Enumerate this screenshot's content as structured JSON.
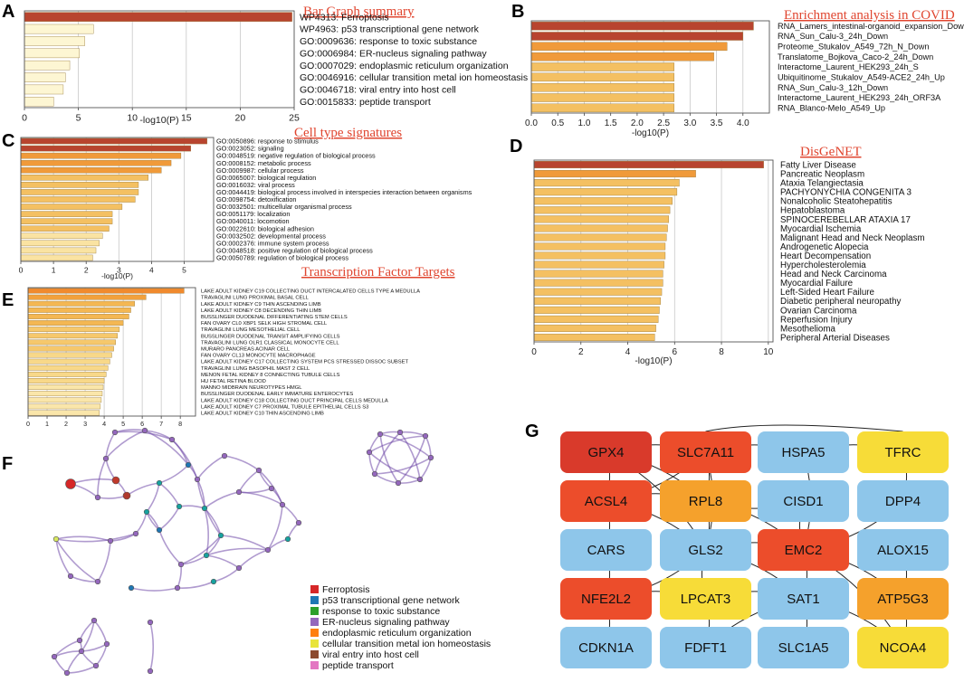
{
  "panel_labels": {
    "A": "A",
    "B": "B",
    "C": "C",
    "D": "D",
    "E": "E",
    "F": "F",
    "G": "G"
  },
  "colors": {
    "bar_dark": "#b8442f",
    "bar_orange": "#f09a3a",
    "bar_mid": "#f4c062",
    "bar_light": "#fae3a2",
    "bar_pale": "#fdf6d3",
    "title_red": "#e0452f",
    "red": "#d93a2b",
    "orange_red": "#ec4d2b",
    "orange": "#f5a12c",
    "yellow": "#f7dc38",
    "blue": "#8ec6ea",
    "purple": "#6f49a8",
    "legend_colors": [
      "#d62728",
      "#1f77b4",
      "#2ca02c",
      "#9467bd",
      "#ff7f0e",
      "#e8e43a",
      "#8c4a2f",
      "#e377c2"
    ]
  },
  "chart_data": [
    {
      "id": "A",
      "type": "bar",
      "orientation": "horizontal",
      "title": "Bar Graph summary",
      "xlabel": "-log10(P)",
      "xlim": [
        0,
        25
      ],
      "xticks": [
        0,
        5,
        10,
        15,
        20,
        25
      ],
      "categories": [
        "WP4313: Ferroptosis",
        "WP4963: p53 transcriptional gene network",
        "GO:0009636: response to toxic substance",
        "GO:0006984: ER-nucleus signaling pathway",
        "GO:0007029: endoplasmic reticulum organization",
        "GO:0046916: cellular transition metal ion homeostasis",
        "GO:0046718: viral entry into host cell",
        "GO:0015833: peptide transport"
      ],
      "values": [
        24.8,
        6.4,
        5.6,
        5.1,
        4.2,
        3.8,
        3.6,
        2.7
      ]
    },
    {
      "id": "B",
      "type": "bar",
      "orientation": "horizontal",
      "title": "Enrichment analysis in COVID",
      "xlabel": "-log10(P)",
      "xlim": [
        0,
        4.5
      ],
      "xticks": [
        0.0,
        0.5,
        1.0,
        1.5,
        2.0,
        2.5,
        3.0,
        3.5,
        4.0
      ],
      "categories": [
        "RNA_Lamers_intestinal-organoid_expansion_Down",
        "RNA_Sun_Calu-3_24h_Down",
        "Proteome_Stukalov_A549_72h_N_Down",
        "Translatome_Bojkova_Caco-2_24h_Down",
        "Interactome_Laurent_HEK293_24h_S",
        "Ubiquitinome_Stukalov_A549-ACE2_24h_Up",
        "RNA_Sun_Calu-3_12h_Down",
        "Interactome_Laurent_HEK293_24h_ORF3A",
        "RNA_Blanco-Melo_A549_Up"
      ],
      "values": [
        4.2,
        4.0,
        3.7,
        3.45,
        2.7,
        2.7,
        2.7,
        2.7,
        2.7
      ]
    },
    {
      "id": "C",
      "type": "bar",
      "orientation": "horizontal",
      "title": "Cell type signatures",
      "xlabel": "-log10(P)",
      "xlim": [
        0,
        5.9
      ],
      "xticks": [
        0,
        1,
        2,
        3,
        4,
        5
      ],
      "categories": [
        "GO:0050896: response to stimulus",
        "GO:0023052: signaling",
        "GO:0048519: negative regulation of biological process",
        "GO:0008152: metabolic process",
        "GO:0009987: cellular process",
        "GO:0065007: biological regulation",
        "GO:0016032: viral process",
        "GO:0044419: biological process involved in interspecies interaction between organisms",
        "GO:0098754: detoxification",
        "GO:0032501: multicellular organismal process",
        "GO:0051179: localization",
        "GO:0040011: locomotion",
        "GO:0022610: biological adhesion",
        "GO:0032502: developmental process",
        "GO:0002376: immune system process",
        "GO:0048518: positive regulation of biological process",
        "GO:0050789: regulation of biological process"
      ],
      "values": [
        5.7,
        5.2,
        4.9,
        4.6,
        4.3,
        3.9,
        3.6,
        3.6,
        3.5,
        3.1,
        2.8,
        2.8,
        2.7,
        2.5,
        2.4,
        2.3,
        2.2
      ]
    },
    {
      "id": "D",
      "type": "bar",
      "orientation": "horizontal",
      "title": "DisGeNET",
      "xlabel": "-log10(P)",
      "xlim": [
        0,
        10.2
      ],
      "xticks": [
        0,
        2,
        4,
        6,
        8,
        10
      ],
      "categories": [
        "Fatty Liver Disease",
        "Pancreatic Neoplasm",
        "Ataxia Telangiectasia",
        "PACHYONYCHIA CONGENITA 3",
        "Nonalcoholic Steatohepatitis",
        "Hepatoblastoma",
        "SPINOCEREBELLAR ATAXIA 17",
        "Myocardial Ischemia",
        "Malignant Head and Neck Neoplasm",
        "Androgenetic Alopecia",
        "Heart Decompensation",
        "Hypercholesterolemia",
        "Head and Neck Carcinoma",
        "Myocardial Failure",
        "Left-Sided Heart Failure",
        "Diabetic peripheral neuropathy",
        "Ovarian Carcinoma",
        "Reperfusion Injury",
        "Mesothelioma",
        "Peripheral Arterial Diseases"
      ],
      "values": [
        9.8,
        6.9,
        6.2,
        6.1,
        5.9,
        5.8,
        5.75,
        5.7,
        5.65,
        5.6,
        5.6,
        5.55,
        5.5,
        5.5,
        5.45,
        5.4,
        5.35,
        5.3,
        5.2,
        5.15
      ]
    },
    {
      "id": "E",
      "type": "bar",
      "orientation": "horizontal",
      "title": "Transcription  Factor  Targets",
      "xlabel": "",
      "xlim": [
        0,
        8.8
      ],
      "xticks": [
        0,
        1,
        2,
        3,
        4,
        5,
        6,
        7,
        8
      ],
      "categories": [
        "LAKE ADULT KIDNEY C19 COLLECTING DUCT INTERCALATED CELLS TYPE A MEDULLA",
        "TRAVAGLINI LUNG PROXIMAL BASAL CELL",
        "LAKE ADULT KIDNEY C9 THIN ASCENDING LIMB",
        "LAKE ADULT KIDNEY C8 DECENDING THIN LIMB",
        "BUSSLINGER DUODENAL DIFFERENTIATING STEM CELLS",
        "FAN OVARY CL0 XBP1 SELK HIGH STROMAL CELL",
        "TRAVAGLINI LUNG MESOTHELIAL CELL",
        "BUSSLINGER DUODENAL TRANSIT AMPLIFYING CELLS",
        "TRAVAGLINI LUNG OLR1 CLASSICAL MONOCYTE CELL",
        "MURARO PANCREAS ACINAR CELL",
        "FAN OVARY CL13 MONOCYTE MACROPHAGE",
        "LAKE ADULT KIDNEY C17 COLLECTING SYSTEM PCS STRESSED DISSOC SUBSET",
        "TRAVAGLINI LUNG BASOPHIL MAST 2 CELL",
        "MENON FETAL KIDNEY 8 CONNECTING TUBULE CELLS",
        "HU FETAL RETINA BLOOD",
        "MANNO MIDBRAIN NEUROTYPES HMGL",
        "BUSSLINGER DUODENAL EARLY IMMATURE ENTEROCYTES",
        "LAKE ADULT KIDNEY C18 COLLECTING DUCT PRINCIPAL CELLS MEDULLA",
        "LAKE ADULT KIDNEY C7 PROXIMAL TUBULE EPITHELIAL CELLS S3",
        "LAKE ADULT KIDNEY C10 THIN ASCENDING LIMB"
      ],
      "values": [
        8.2,
        6.2,
        5.6,
        5.4,
        5.3,
        5.0,
        4.8,
        4.7,
        4.6,
        4.5,
        4.4,
        4.3,
        4.2,
        4.1,
        4.0,
        3.95,
        3.9,
        3.85,
        3.8,
        3.75
      ]
    }
  ],
  "network": {
    "legend": [
      "Ferroptosis",
      "p53 transcriptional gene network",
      "response to toxic substance",
      "ER-nucleus signaling pathway",
      "endoplasmic reticulum organization",
      "cellular transition metal ion homeostasis",
      "viral entry into host cell",
      "peptide transport"
    ]
  },
  "gene_grid": {
    "rows": [
      [
        {
          "name": "GPX4",
          "color": "red"
        },
        {
          "name": "SLC7A11",
          "color": "orange_red"
        },
        {
          "name": "HSPA5",
          "color": "blue"
        },
        {
          "name": "TFRC",
          "color": "yellow"
        }
      ],
      [
        {
          "name": "ACSL4",
          "color": "orange_red"
        },
        {
          "name": "RPL8",
          "color": "orange"
        },
        {
          "name": "CISD1",
          "color": "blue"
        },
        {
          "name": "DPP4",
          "color": "blue"
        }
      ],
      [
        {
          "name": "CARS",
          "color": "blue"
        },
        {
          "name": "GLS2",
          "color": "blue"
        },
        {
          "name": "EMC2",
          "color": "orange_red"
        },
        {
          "name": "ALOX15",
          "color": "blue"
        }
      ],
      [
        {
          "name": "NFE2L2",
          "color": "orange_red"
        },
        {
          "name": "LPCAT3",
          "color": "yellow"
        },
        {
          "name": "SAT1",
          "color": "blue"
        },
        {
          "name": "ATP5G3",
          "color": "orange"
        }
      ],
      [
        {
          "name": "CDKN1A",
          "color": "blue"
        },
        {
          "name": "FDFT1",
          "color": "blue"
        },
        {
          "name": "SLC1A5",
          "color": "blue"
        },
        {
          "name": "NCOA4",
          "color": "yellow"
        }
      ]
    ]
  }
}
